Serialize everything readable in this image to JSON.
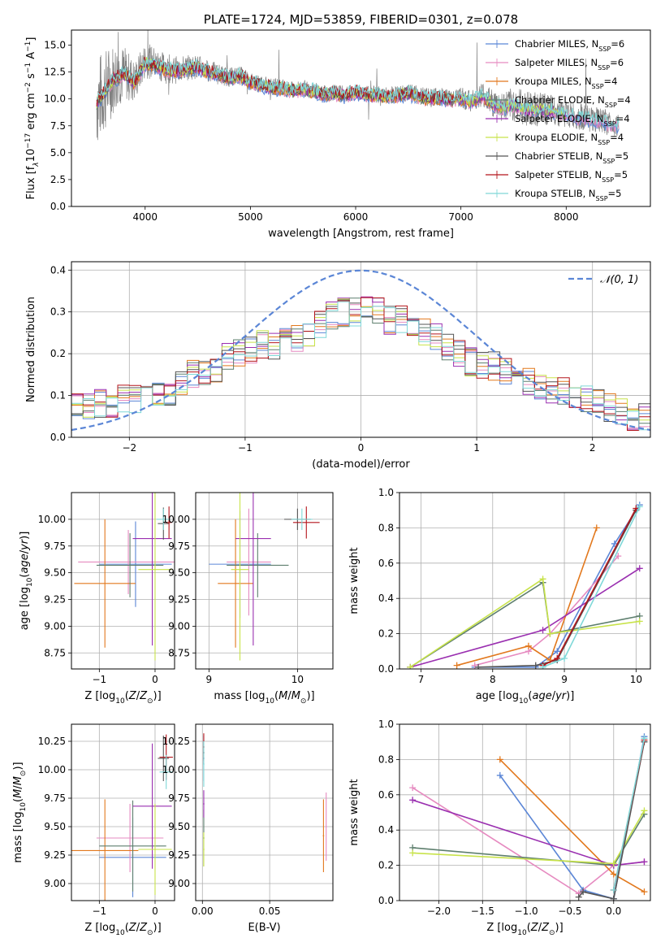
{
  "colors": [
    "#5b86d6",
    "#e68ac0",
    "#e2781d",
    "#5e7f6e",
    "#9a2fb0",
    "#c8e34a",
    "#555555",
    "#b4151b",
    "#7fd8d8"
  ],
  "chart_data": [
    {
      "id": "spectrum",
      "type": "line",
      "title": "PLATE=1724, MJD=53859, FIBERID=0301, z=0.078",
      "xlabel": "wavelength [Angstrom, rest frame]",
      "ylabel_html": "Flux [f<tspan font-style='italic' baseline-shift='sub' font-size='9'>λ</tspan>10<tspan baseline-shift='super' font-size='9'>−17</tspan> erg cm<tspan baseline-shift='super' font-size='9'>−2</tspan> s<tspan baseline-shift='super' font-size='9'>−1</tspan> A<tspan baseline-shift='super' font-size='9'>−1</tspan>]",
      "xlim": [
        3300,
        8800
      ],
      "ylim": [
        0,
        16.4
      ],
      "xticks": [
        4000,
        5000,
        6000,
        7000,
        8000
      ],
      "yticks": [
        0.0,
        2.5,
        5.0,
        7.5,
        10.0,
        12.5,
        15.0
      ],
      "legend_position": "right",
      "observed": {
        "color": "#808080",
        "x": [
          3540,
          3600,
          3700,
          3800,
          3900,
          4000,
          4100,
          4200,
          4300,
          4400,
          4500,
          4600,
          4700,
          4800,
          4900,
          5000,
          5100,
          5200,
          5300,
          5400,
          5500,
          5600,
          5700,
          5800,
          5900,
          6000,
          6100,
          6200,
          6300,
          6400,
          6500,
          6600,
          6700,
          6800,
          6900,
          7000,
          7100,
          7200,
          7300,
          7400,
          7500,
          7600,
          7700,
          7800,
          7900,
          8000,
          8100,
          8200,
          8300,
          8400,
          8500
        ],
        "y": [
          9.8,
          10.5,
          12.0,
          12.4,
          11.6,
          13.6,
          13.3,
          12.8,
          12.7,
          12.9,
          13.0,
          12.6,
          12.3,
          12.0,
          12.2,
          11.6,
          11.4,
          11.1,
          11.1,
          10.8,
          11.0,
          10.8,
          10.5,
          10.6,
          10.4,
          10.7,
          10.5,
          10.4,
          10.3,
          10.4,
          10.6,
          10.3,
          10.1,
          10.2,
          10.0,
          10.1,
          9.8,
          10.5,
          9.6,
          9.3,
          9.5,
          9.2,
          9.1,
          9.0,
          8.9,
          8.6,
          8.4,
          8.2,
          8.0,
          7.8,
          7.6
        ],
        "noise_amplitude": [
          4.5,
          4.0,
          3.4,
          2.6,
          2.0,
          1.7,
          1.5,
          1.4,
          1.3,
          1.2,
          1.1,
          1.0,
          1.0,
          0.9,
          0.9,
          0.9,
          0.8,
          0.8,
          0.8,
          0.8,
          0.8,
          0.8,
          0.8,
          0.8,
          0.8,
          0.8,
          0.8,
          0.8,
          0.8,
          0.8,
          0.8,
          0.9,
          0.9,
          0.9,
          0.9,
          1.0,
          1.0,
          1.2,
          1.3,
          1.5,
          1.6,
          1.7,
          1.7,
          1.5,
          1.4,
          1.3,
          1.3,
          1.2,
          1.2,
          1.2,
          1.1
        ]
      },
      "model": {
        "x": [
          3540,
          3600,
          3700,
          3800,
          3900,
          4000,
          4100,
          4200,
          4300,
          4400,
          4500,
          4600,
          4700,
          4800,
          4900,
          5000,
          5100,
          5200,
          5300,
          5400,
          5500,
          5600,
          5700,
          5800,
          5900,
          6000,
          6100,
          6200,
          6300,
          6400,
          6500,
          6600,
          6700,
          6800,
          6900,
          7000,
          7100,
          7200,
          7300,
          7400,
          7500,
          7600,
          7700,
          7800,
          7900,
          8000,
          8100,
          8200,
          8300,
          8400,
          8500
        ],
        "y": [
          9.6,
          10.4,
          11.8,
          12.3,
          11.5,
          13.3,
          13.1,
          12.7,
          12.6,
          12.8,
          12.9,
          12.5,
          12.2,
          11.9,
          12.1,
          11.5,
          11.3,
          11.0,
          11.0,
          10.7,
          10.9,
          10.7,
          10.4,
          10.5,
          10.3,
          10.6,
          10.4,
          10.3,
          10.2,
          10.3,
          10.5,
          10.2,
          10.0,
          10.1,
          9.9,
          10.0,
          9.7,
          10.3,
          9.5,
          9.2,
          9.4,
          9.1,
          9.0,
          8.9,
          8.8,
          8.5,
          8.3,
          8.1,
          7.9,
          7.7,
          7.5
        ],
        "model_end_x": [
          8500,
          8500,
          7400,
          8000,
          8000,
          8000,
          7000,
          7000,
          8500
        ]
      },
      "legend": [
        {
          "pre": "Chabrier MILES, N",
          "n": "6"
        },
        {
          "pre": "Salpeter MILES, N",
          "n": "6"
        },
        {
          "pre": "Kroupa MILES, N",
          "n": "4"
        },
        {
          "pre": "Chabrier ELODIE, N",
          "n": "4"
        },
        {
          "pre": "Salpeter ELODIE, N",
          "n": "4"
        },
        {
          "pre": "Kroupa ELODIE, N",
          "n": "4"
        },
        {
          "pre": "Chabrier STELIB, N",
          "n": "5"
        },
        {
          "pre": "Salpeter STELIB, N",
          "n": "5"
        },
        {
          "pre": "Kroupa STELIB, N",
          "n": "5"
        }
      ],
      "legend_sub": "SSP"
    },
    {
      "id": "residuals",
      "type": "line",
      "xlabel": "(data-model)/error",
      "ylabel": "Normed distribution",
      "xlim": [
        -2.5,
        2.5
      ],
      "ylim": [
        0,
        0.42
      ],
      "xticks": [
        -2,
        -1,
        0,
        1,
        2
      ],
      "yticks": [
        0.0,
        0.1,
        0.2,
        0.3,
        0.4
      ],
      "grid": true,
      "legend_position": "top-right",
      "legend_label": "𝒩(0, 1)",
      "normal_curve": {
        "mean": 0,
        "sigma": 1,
        "color": "#5b86d6",
        "style": "dashed"
      },
      "bin_width": 0.1,
      "bin_start": -2.5,
      "base_hist": [
        0.07,
        0.07,
        0.08,
        0.08,
        0.09,
        0.09,
        0.1,
        0.1,
        0.11,
        0.13,
        0.15,
        0.16,
        0.16,
        0.19,
        0.2,
        0.21,
        0.22,
        0.22,
        0.23,
        0.24,
        0.25,
        0.27,
        0.29,
        0.3,
        0.3,
        0.31,
        0.3,
        0.28,
        0.28,
        0.26,
        0.25,
        0.24,
        0.22,
        0.2,
        0.18,
        0.17,
        0.17,
        0.16,
        0.15,
        0.13,
        0.12,
        0.11,
        0.11,
        0.1,
        0.09,
        0.08,
        0.07,
        0.06,
        0.05,
        0.05
      ],
      "spread": 0.035
    },
    {
      "id": "age-vs-Z",
      "type": "scatter",
      "xlabel_html": "Z [log<tspan baseline-shift='sub' font-size='9'>10</tspan>(<tspan font-style='italic'>Z</tspan>/<tspan font-style='italic'>Z</tspan><tspan baseline-shift='sub' font-size='9'>⊙</tspan>)]",
      "ylabel_html": "age  [log<tspan baseline-shift='sub' font-size='9'>10</tspan>(<tspan font-style='italic'>age</tspan>/<tspan font-style='italic'>yr</tspan>)]",
      "xlim": [
        -1.5,
        0.35
      ],
      "ylim": [
        8.6,
        10.25
      ],
      "xticks": [
        -1,
        0
      ],
      "yticks": [
        8.75,
        9.0,
        9.25,
        9.5,
        9.75,
        10.0
      ],
      "grid": true,
      "errorbars": [
        {
          "x": -0.35,
          "y": 9.58,
          "xerr": 0.65,
          "yerr": 0.4
        },
        {
          "x": -0.48,
          "y": 9.6,
          "xerr": 0.9,
          "yerr": 0.3
        },
        {
          "x": -0.9,
          "y": 9.4,
          "xerr": 0.55,
          "yerr": 0.6
        },
        {
          "x": -0.45,
          "y": 9.57,
          "xerr": 0.6,
          "yerr": 0.3
        },
        {
          "x": -0.05,
          "y": 9.82,
          "xerr": 0.35,
          "yerr": 1.0
        },
        {
          "x": 0.0,
          "y": 9.53,
          "xerr": 0.3,
          "yerr": 0.85
        },
        {
          "x": 0.15,
          "y": 9.96,
          "xerr": 0.1,
          "yerr": 0.15
        },
        {
          "x": 0.25,
          "y": 9.97,
          "xerr": 0.05,
          "yerr": 0.15
        },
        {
          "x": 0.15,
          "y": 10.0,
          "xerr": 0.12,
          "yerr": 0.1
        }
      ]
    },
    {
      "id": "age-vs-mass",
      "type": "scatter",
      "xlabel_html": "mass [log<tspan baseline-shift='sub' font-size='9'>10</tspan>(<tspan font-style='italic'>M</tspan>/<tspan font-style='italic'>M</tspan><tspan baseline-shift='sub' font-size='9'>⊙</tspan>)]",
      "xlim": [
        8.85,
        10.4
      ],
      "ylim": [
        8.6,
        10.25
      ],
      "xticks": [
        9,
        10
      ],
      "yticks": [
        8.75,
        9.0,
        9.25,
        9.5,
        9.75,
        10.0
      ],
      "grid": true,
      "errorbars": [
        {
          "x": 9.35,
          "y": 9.58,
          "xerr": 0.35,
          "yerr": 0.5
        },
        {
          "x": 9.45,
          "y": 9.6,
          "xerr": 0.25,
          "yerr": 0.5
        },
        {
          "x": 9.3,
          "y": 9.4,
          "xerr": 0.2,
          "yerr": 0.6
        },
        {
          "x": 9.55,
          "y": 9.57,
          "xerr": 0.35,
          "yerr": 0.3
        },
        {
          "x": 9.5,
          "y": 9.82,
          "xerr": 0.2,
          "yerr": 1.0
        },
        {
          "x": 9.35,
          "y": 9.53,
          "xerr": 0.1,
          "yerr": 0.85
        },
        {
          "x": 10.0,
          "y": 10.0,
          "xerr": 0.15,
          "yerr": 0.1
        },
        {
          "x": 10.1,
          "y": 9.97,
          "xerr": 0.15,
          "yerr": 0.15
        },
        {
          "x": 10.05,
          "y": 10.0,
          "xerr": 0.12,
          "yerr": 0.1
        }
      ]
    },
    {
      "id": "weight-vs-age",
      "type": "line",
      "xlabel_html": "age  [log<tspan baseline-shift='sub' font-size='9'>10</tspan>(<tspan font-style='italic'>age</tspan>/<tspan font-style='italic'>yr</tspan>)]",
      "ylabel": "mass weight",
      "xlim": [
        6.7,
        10.2
      ],
      "ylim": [
        0,
        1.0
      ],
      "xticks": [
        7,
        8,
        9,
        10
      ],
      "yticks": [
        0.0,
        0.2,
        0.4,
        0.6,
        0.8,
        1.0
      ],
      "grid": true,
      "series": [
        {
          "x": [
            7.75,
            8.6,
            8.9,
            9.7,
            10.05
          ],
          "y": [
            0.01,
            0.01,
            0.1,
            0.71,
            0.93
          ]
        },
        {
          "x": [
            7.75,
            8.5,
            8.8,
            9.75
          ],
          "y": [
            0.02,
            0.1,
            0.2,
            0.64
          ]
        },
        {
          "x": [
            7.5,
            8.5,
            8.8,
            9.45
          ],
          "y": [
            0.02,
            0.13,
            0.05,
            0.8
          ]
        },
        {
          "x": [
            6.85,
            8.7,
            8.8,
            10.05
          ],
          "y": [
            0.01,
            0.49,
            0.2,
            0.3
          ]
        },
        {
          "x": [
            6.85,
            8.7,
            10.05
          ],
          "y": [
            0.01,
            0.22,
            0.57
          ]
        },
        {
          "x": [
            6.85,
            8.7,
            8.8,
            10.05
          ],
          "y": [
            0.01,
            0.51,
            0.2,
            0.27
          ]
        },
        {
          "x": [
            7.8,
            8.6,
            8.9,
            10.0
          ],
          "y": [
            0.01,
            0.02,
            0.05,
            0.9
          ]
        },
        {
          "x": [
            8.7,
            8.9,
            10.0
          ],
          "y": [
            0.02,
            0.06,
            0.91
          ]
        },
        {
          "x": [
            8.7,
            9.0,
            10.05
          ],
          "y": [
            0.01,
            0.06,
            0.92
          ]
        }
      ]
    },
    {
      "id": "mass-vs-Z",
      "type": "scatter",
      "xlabel_html": "Z [log<tspan baseline-shift='sub' font-size='9'>10</tspan>(<tspan font-style='italic'>Z</tspan>/<tspan font-style='italic'>Z</tspan><tspan baseline-shift='sub' font-size='9'>⊙</tspan>)]",
      "ylabel_html": "mass [log<tspan baseline-shift='sub' font-size='9'>10</tspan>(<tspan font-style='italic'>M</tspan>/<tspan font-style='italic'>M</tspan><tspan baseline-shift='sub' font-size='9'>⊙</tspan>)]",
      "xlim": [
        -1.5,
        0.35
      ],
      "ylim": [
        8.85,
        10.4
      ],
      "xticks": [
        -1,
        0
      ],
      "yticks": [
        9.0,
        9.25,
        9.5,
        9.75,
        10.0,
        10.25
      ],
      "grid": true,
      "errorbars": [
        {
          "x": -0.4,
          "y": 9.23,
          "xerr": 0.6,
          "yerr": 0.35
        },
        {
          "x": -0.45,
          "y": 9.4,
          "xerr": 0.6,
          "yerr": 0.3
        },
        {
          "x": -0.9,
          "y": 9.29,
          "xerr": 0.6,
          "yerr": 0.45
        },
        {
          "x": -0.4,
          "y": 9.33,
          "xerr": 0.6,
          "yerr": 0.4
        },
        {
          "x": -0.05,
          "y": 9.68,
          "xerr": 0.35,
          "yerr": 0.55
        },
        {
          "x": 0.0,
          "y": 9.3,
          "xerr": 0.3,
          "yerr": 0.4
        },
        {
          "x": 0.15,
          "y": 10.1,
          "xerr": 0.1,
          "yerr": 0.2
        },
        {
          "x": 0.2,
          "y": 10.11,
          "xerr": 0.12,
          "yerr": 0.2
        },
        {
          "x": 0.2,
          "y": 9.98,
          "xerr": 0.12,
          "yerr": 0.15
        }
      ]
    },
    {
      "id": "mass-vs-EBV",
      "type": "scatter",
      "xlabel": "E(B-V)",
      "xlim": [
        -0.005,
        0.097
      ],
      "ylim": [
        8.85,
        10.4
      ],
      "xticks": [
        0.0,
        0.05
      ],
      "xtick_labels": [
        "0.00",
        "0.05"
      ],
      "yticks": [
        9.0,
        9.25,
        9.5,
        9.75,
        10.0,
        10.25
      ],
      "grid": true,
      "errorbars": [
        {
          "x": 0.001,
          "y": 10.1,
          "xerr": 0.0005,
          "yerr": 0.2
        },
        {
          "x": 0.092,
          "y": 9.5,
          "xerr": 0.0005,
          "yerr": 0.3
        },
        {
          "x": 0.09,
          "y": 9.42,
          "xerr": 0.0005,
          "yerr": 0.32
        },
        {
          "x": 0.001,
          "y": 9.4,
          "xerr": 0.0005,
          "yerr": 0.25
        },
        {
          "x": 0.001,
          "y": 9.7,
          "xerr": 0.0005,
          "yerr": 0.12
        },
        {
          "x": 0.001,
          "y": 9.3,
          "xerr": 0.0005,
          "yerr": 0.15
        },
        {
          "x": 0.001,
          "y": 10.15,
          "xerr": 0.0005,
          "yerr": 0.1
        },
        {
          "x": 0.001,
          "y": 10.2,
          "xerr": 0.0005,
          "yerr": 0.12
        },
        {
          "x": 0.001,
          "y": 10.05,
          "xerr": 0.0005,
          "yerr": 0.2
        }
      ]
    },
    {
      "id": "weight-vs-Z",
      "type": "line",
      "xlabel_html": "Z [log<tspan baseline-shift='sub' font-size='9'>10</tspan>(<tspan font-style='italic'>Z</tspan>/<tspan font-style='italic'>Z</tspan><tspan baseline-shift='sub' font-size='9'>⊙</tspan>)]",
      "ylabel": "mass weight",
      "xlim": [
        -2.45,
        0.42
      ],
      "ylim": [
        0,
        1.0
      ],
      "xticks": [
        -2.0,
        -1.5,
        -1.0,
        -0.5,
        0.0
      ],
      "yticks": [
        0.0,
        0.2,
        0.4,
        0.6,
        0.8,
        1.0
      ],
      "grid": true,
      "series": [
        {
          "x": [
            -1.3,
            -0.35,
            0.0,
            0.35
          ],
          "y": [
            0.71,
            0.06,
            0.01,
            0.93
          ]
        },
        {
          "x": [
            -2.3,
            -0.4,
            0.0,
            0.35
          ],
          "y": [
            0.64,
            0.04,
            0.2,
            0.22
          ]
        },
        {
          "x": [
            -1.3,
            0.0,
            0.35
          ],
          "y": [
            0.8,
            0.15,
            0.05
          ]
        },
        {
          "x": [
            -2.3,
            0.0,
            0.35
          ],
          "y": [
            0.3,
            0.2,
            0.49
          ]
        },
        {
          "x": [
            -2.3,
            0.0,
            0.35
          ],
          "y": [
            0.57,
            0.2,
            0.22
          ]
        },
        {
          "x": [
            -2.3,
            0.0,
            0.35
          ],
          "y": [
            0.27,
            0.21,
            0.51
          ]
        },
        {
          "x": [
            -0.4,
            -0.35,
            0.0,
            0.35
          ],
          "y": [
            0.02,
            0.05,
            0.01,
            0.9
          ]
        },
        {
          "x": [
            0.0,
            0.35
          ],
          "y": [
            0.06,
            0.91
          ]
        },
        {
          "x": [
            0.0,
            0.35
          ],
          "y": [
            0.06,
            0.92
          ]
        }
      ]
    }
  ]
}
